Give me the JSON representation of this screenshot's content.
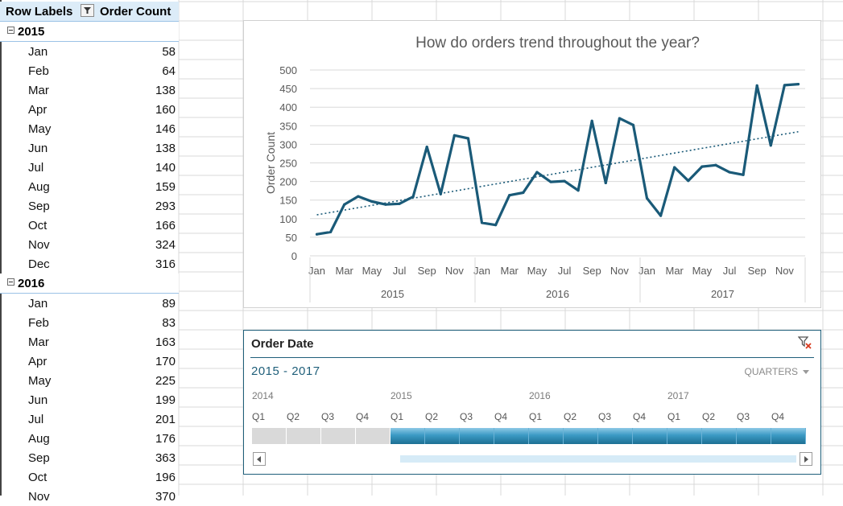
{
  "pivot": {
    "row_labels_header": "Row Labels",
    "value_header": "Order Count",
    "filter_icon": "filter-dropdown-icon",
    "collapse_glyph": "⊟",
    "groups": [
      {
        "year": "2015",
        "rows": [
          {
            "month": "Jan",
            "value": "58"
          },
          {
            "month": "Feb",
            "value": "64"
          },
          {
            "month": "Mar",
            "value": "138"
          },
          {
            "month": "Apr",
            "value": "160"
          },
          {
            "month": "May",
            "value": "146"
          },
          {
            "month": "Jun",
            "value": "138"
          },
          {
            "month": "Jul",
            "value": "140"
          },
          {
            "month": "Aug",
            "value": "159"
          },
          {
            "month": "Sep",
            "value": "293"
          },
          {
            "month": "Oct",
            "value": "166"
          },
          {
            "month": "Nov",
            "value": "324"
          },
          {
            "month": "Dec",
            "value": "316"
          }
        ]
      },
      {
        "year": "2016",
        "rows": [
          {
            "month": "Jan",
            "value": "89"
          },
          {
            "month": "Feb",
            "value": "83"
          },
          {
            "month": "Mar",
            "value": "163"
          },
          {
            "month": "Apr",
            "value": "170"
          },
          {
            "month": "May",
            "value": "225"
          },
          {
            "month": "Jun",
            "value": "199"
          },
          {
            "month": "Jul",
            "value": "201"
          },
          {
            "month": "Aug",
            "value": "176"
          },
          {
            "month": "Sep",
            "value": "363"
          },
          {
            "month": "Oct",
            "value": "196"
          },
          {
            "month": "Nov",
            "value": "370"
          }
        ]
      }
    ]
  },
  "chart_data": {
    "type": "line",
    "title": "How do orders trend throughout the year?",
    "xlabel": "",
    "ylabel": "Order Count",
    "ylim": [
      0,
      500
    ],
    "yticks": [
      0,
      50,
      100,
      150,
      200,
      250,
      300,
      350,
      400,
      450,
      500
    ],
    "x_tick_labels": [
      "Jan",
      "Mar",
      "May",
      "Jul",
      "Sep",
      "Nov"
    ],
    "years": [
      "2015",
      "2016",
      "2017"
    ],
    "months": [
      "Jan",
      "Feb",
      "Mar",
      "Apr",
      "May",
      "Jun",
      "Jul",
      "Aug",
      "Sep",
      "Oct",
      "Nov",
      "Dec"
    ],
    "series": [
      {
        "values": [
          58,
          64,
          138,
          160,
          146,
          138,
          140,
          159,
          293,
          166,
          324,
          316,
          89,
          83,
          163,
          170,
          225,
          199,
          201,
          176,
          363,
          196,
          370,
          352,
          155,
          108,
          238,
          202,
          240,
          244,
          225,
          218,
          458,
          297,
          459,
          462
        ],
        "color": "#1a5a78"
      }
    ],
    "trendline": {
      "type": "linear",
      "style": "dotted",
      "color": "#1a5a78"
    },
    "grid": true,
    "legend": "none"
  },
  "slicer": {
    "title": "Order Date",
    "range_text": "2015 - 2017",
    "level": "QUARTERS",
    "clear_icon": "clear-filter-icon",
    "years": [
      "2014",
      "2015",
      "2016",
      "2017"
    ],
    "quarters": [
      "Q1",
      "Q2",
      "Q3",
      "Q4",
      "Q1",
      "Q2",
      "Q3",
      "Q4",
      "Q1",
      "Q2",
      "Q3",
      "Q4",
      "Q1",
      "Q2",
      "Q3",
      "Q4"
    ],
    "selected_from_index": 4,
    "colors": {
      "selected": "#2f8fbf",
      "unselected": "#d9d9d9",
      "border": "#1f5f7a"
    }
  }
}
